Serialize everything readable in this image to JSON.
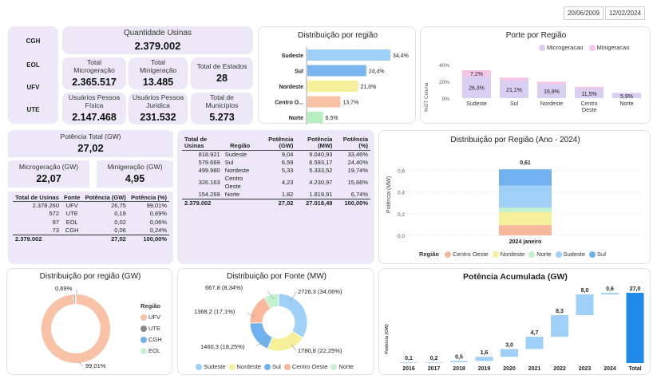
{
  "dates": {
    "start": "20/06/2009",
    "end": "12/02/2024"
  },
  "fontes_list": [
    "CGH",
    "EOL",
    "UFV",
    "UTE"
  ],
  "kpis": {
    "qtd_usinas_label": "Quantidade Usinas",
    "qtd_usinas": "2.379.002",
    "micro_label": "Total Microgeração",
    "micro": "2.365.517",
    "mini_label": "Total Minigeração",
    "mini": "13.485",
    "estados_label": "Total de Estados",
    "estados": "28",
    "usu_fis_label": "Usuários Pessoa Física",
    "usu_fis": "2.147.468",
    "usu_jur_label": "Usuários Pessoa Jurídica",
    "usu_jur": "231.532",
    "municipios_label": "Total de Municípios",
    "municipios": "5.273",
    "pot_total_label": "Potência Total (GW)",
    "pot_total": "27,02",
    "micro_gw_label": "Microgeração (GW)",
    "micro_gw": "22,07",
    "mini_gw_label": "Minigeração (GW)",
    "mini_gw": "4,95"
  },
  "fonte_table": {
    "headers": [
      "Total de Usinas",
      "Fonte",
      "Potência (GW)",
      "Potência (%)"
    ],
    "rows": [
      [
        "2.378.260",
        "UFV",
        "26,75",
        "99,01%"
      ],
      [
        "572",
        "UTE",
        "0,19",
        "0,69%"
      ],
      [
        "97",
        "EOL",
        "0,02",
        "0,06%"
      ],
      [
        "73",
        "CGH",
        "0,06",
        "0,24%"
      ]
    ],
    "total": [
      "2.379.002",
      "",
      "27,02",
      "100,00%"
    ]
  },
  "regiao_table": {
    "headers": [
      "Total de Usinas",
      "Região",
      "Potência (GW)",
      "Potência (MW)",
      "Potência (%)"
    ],
    "rows": [
      [
        "818.921",
        "Sudeste",
        "9,04",
        "9.040,93",
        "33,46%"
      ],
      [
        "579.669",
        "Sul",
        "6,59",
        "6.593,17",
        "24,40%"
      ],
      [
        "499.980",
        "Nordeste",
        "5,33",
        "5.333,52",
        "19,74%"
      ],
      [
        "326.163",
        "Centro Oeste",
        "4,23",
        "4.230,97",
        "15,66%"
      ],
      [
        "154.269",
        "Norte",
        "1,82",
        "1.819,91",
        "6,74%"
      ]
    ],
    "total": [
      "2.379.002",
      "",
      "27,02",
      "27.018,49",
      "100,00%"
    ]
  },
  "chart_data": [
    {
      "type": "bar",
      "orientation": "horizontal",
      "title": "Distribuição por região",
      "categories": [
        "Sudeste",
        "Sul",
        "Nordeste",
        "Centro O...",
        "Norte"
      ],
      "values": [
        34.4,
        24.4,
        21.0,
        13.7,
        6.5
      ],
      "labels": [
        "34,4%",
        "24,4%",
        "21,0%",
        "13,7%",
        "6,5%"
      ],
      "colors": [
        "#9fd0f7",
        "#7ab6ee",
        "#f7f09a",
        "#f9c2a6",
        "#b5efc1"
      ]
    },
    {
      "type": "bar",
      "stacked": true,
      "title": "Porte por Região",
      "ylabel": "%GT Coluna",
      "categories": [
        "Sudeste",
        "Sul",
        "Nordeste",
        "Centro Oeste",
        "Norte"
      ],
      "series": [
        {
          "name": "Microgeracao",
          "values": [
            26.3,
            21.1,
            16.9,
            11.5,
            5.9
          ],
          "labels": [
            "26,3%",
            "21,1%",
            "16,9%",
            "11,5%",
            "5,9%"
          ],
          "color": "#d9cff3"
        },
        {
          "name": "Minigeracao",
          "values": [
            7.2,
            3.5,
            2.8,
            2.1,
            0.5
          ],
          "labels": [
            "7,2%",
            "",
            "",
            "",
            ""
          ],
          "color": "#f8c6e5"
        }
      ],
      "yticks": [
        "40%",
        "20%",
        "0%"
      ],
      "ylim": [
        0,
        45
      ]
    },
    {
      "type": "bar",
      "stacked": true,
      "title": "Distribuição por Região (Ano - 2024)",
      "ylabel": "Potência (MW)",
      "categories": [
        "2024 janeiro"
      ],
      "total_label": "0,61",
      "ylim": [
        0,
        0.7
      ],
      "yticks": [
        "0,6",
        "0,4",
        "0,2",
        "0,0"
      ],
      "series": [
        {
          "name": "Centro Oeste",
          "values": [
            0.095
          ],
          "color": "#f9b89c"
        },
        {
          "name": "Nordeste",
          "values": [
            0.12
          ],
          "color": "#f7f09a"
        },
        {
          "name": "Norte",
          "values": [
            0.04
          ],
          "color": "#c4f2cf"
        },
        {
          "name": "Sudeste",
          "values": [
            0.205
          ],
          "color": "#9fd0f7"
        },
        {
          "name": "Sul",
          "values": [
            0.15
          ],
          "color": "#6fb2ef"
        }
      ],
      "legend_title": "Região"
    },
    {
      "type": "pie",
      "donut": true,
      "title": "Distribuição por região (GW)",
      "categories": [
        "UFV",
        "UTE",
        "CGH",
        "EOL"
      ],
      "values": [
        99.01,
        0.69,
        0.24,
        0.06
      ],
      "labels": [
        "99,01%",
        "0,69%",
        "",
        ""
      ],
      "colors": [
        "#f9c2a6",
        "#888888",
        "#6fb2ef",
        "#c4f2cf"
      ],
      "legend_title": "Região"
    },
    {
      "type": "pie",
      "donut": true,
      "title": "Distribuição por Fonte (MW)",
      "categories": [
        "Sudeste",
        "Nordeste",
        "Sul",
        "Centro Oeste",
        "Norte"
      ],
      "values": [
        2726.3,
        1780.8,
        1460.3,
        1368.2,
        667.8
      ],
      "labels": [
        "2726,3 (34,06%)",
        "1780,8 (22,25%)",
        "1460,3 (18,25%)",
        "1368,2 (17,1%)",
        "667,8 (8,34%)"
      ],
      "colors": [
        "#9fd0f7",
        "#f7f09a",
        "#6fb2ef",
        "#f9b89c",
        "#c4f2cf"
      ]
    },
    {
      "type": "bar",
      "subtype": "waterfall",
      "title": "Potência Acumulada (GW)",
      "ylabel": "Potência (GW)",
      "categories": [
        "2016",
        "2017",
        "2018",
        "2019",
        "2020",
        "2021",
        "2022",
        "2023",
        "2024",
        "Total"
      ],
      "values": [
        0.1,
        0.2,
        0.5,
        1.6,
        3.0,
        4.7,
        8.3,
        8.0,
        0.6,
        27.0
      ],
      "labels": [
        "0,1",
        "0,2",
        "0,5",
        "1,6",
        "3,0",
        "4,7",
        "8,3",
        "8,0",
        "0,6",
        "27,0"
      ],
      "colors": {
        "increase": "#9fd0f7",
        "total": "#1f8be8"
      }
    }
  ]
}
